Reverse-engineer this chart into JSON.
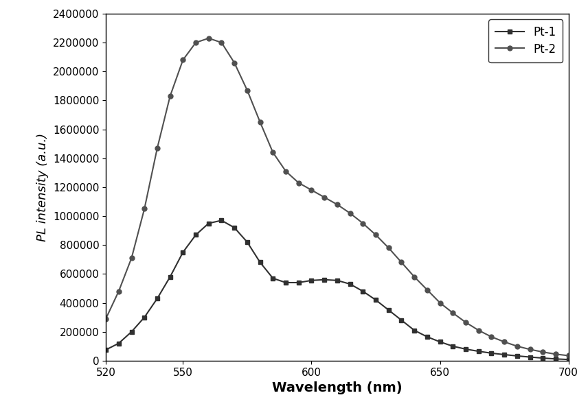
{
  "title": "",
  "xlabel": "Wavelength (nm)",
  "ylabel": "PL intensity (a.u.)",
  "xlim": [
    520,
    700
  ],
  "ylim": [
    0,
    2400000
  ],
  "yticks": [
    0,
    200000,
    400000,
    600000,
    800000,
    1000000,
    1200000,
    1400000,
    1600000,
    1800000,
    2000000,
    2200000,
    2400000
  ],
  "xticks": [
    520,
    550,
    600,
    650,
    700
  ],
  "pt1_x": [
    520,
    525,
    530,
    535,
    540,
    545,
    550,
    555,
    560,
    565,
    570,
    575,
    580,
    585,
    590,
    595,
    600,
    605,
    610,
    615,
    620,
    625,
    630,
    635,
    640,
    645,
    650,
    655,
    660,
    665,
    670,
    675,
    680,
    685,
    690,
    695,
    700
  ],
  "pt1_y": [
    75000,
    120000,
    200000,
    300000,
    430000,
    580000,
    750000,
    870000,
    950000,
    970000,
    920000,
    820000,
    680000,
    570000,
    540000,
    540000,
    555000,
    560000,
    555000,
    530000,
    480000,
    420000,
    350000,
    280000,
    210000,
    165000,
    130000,
    100000,
    80000,
    65000,
    52000,
    42000,
    33000,
    25000,
    18000,
    12000,
    8000
  ],
  "pt2_x": [
    520,
    525,
    530,
    535,
    540,
    545,
    550,
    555,
    560,
    565,
    570,
    575,
    580,
    585,
    590,
    595,
    600,
    605,
    610,
    615,
    620,
    625,
    630,
    635,
    640,
    645,
    650,
    655,
    660,
    665,
    670,
    675,
    680,
    685,
    690,
    695,
    700
  ],
  "pt2_y": [
    290000,
    480000,
    710000,
    1050000,
    1470000,
    1830000,
    2080000,
    2200000,
    2230000,
    2200000,
    2060000,
    1870000,
    1650000,
    1440000,
    1310000,
    1230000,
    1180000,
    1130000,
    1080000,
    1020000,
    950000,
    870000,
    780000,
    680000,
    580000,
    490000,
    400000,
    330000,
    265000,
    210000,
    165000,
    130000,
    100000,
    78000,
    60000,
    45000,
    35000
  ],
  "pt1_color": "#303030",
  "pt2_color": "#505050",
  "pt1_marker": "s",
  "pt2_marker": "o",
  "line_width": 1.5,
  "marker_size": 5,
  "legend_loc": "upper right",
  "xlabel_fontsize": 14,
  "ylabel_fontsize": 13,
  "tick_fontsize": 11
}
